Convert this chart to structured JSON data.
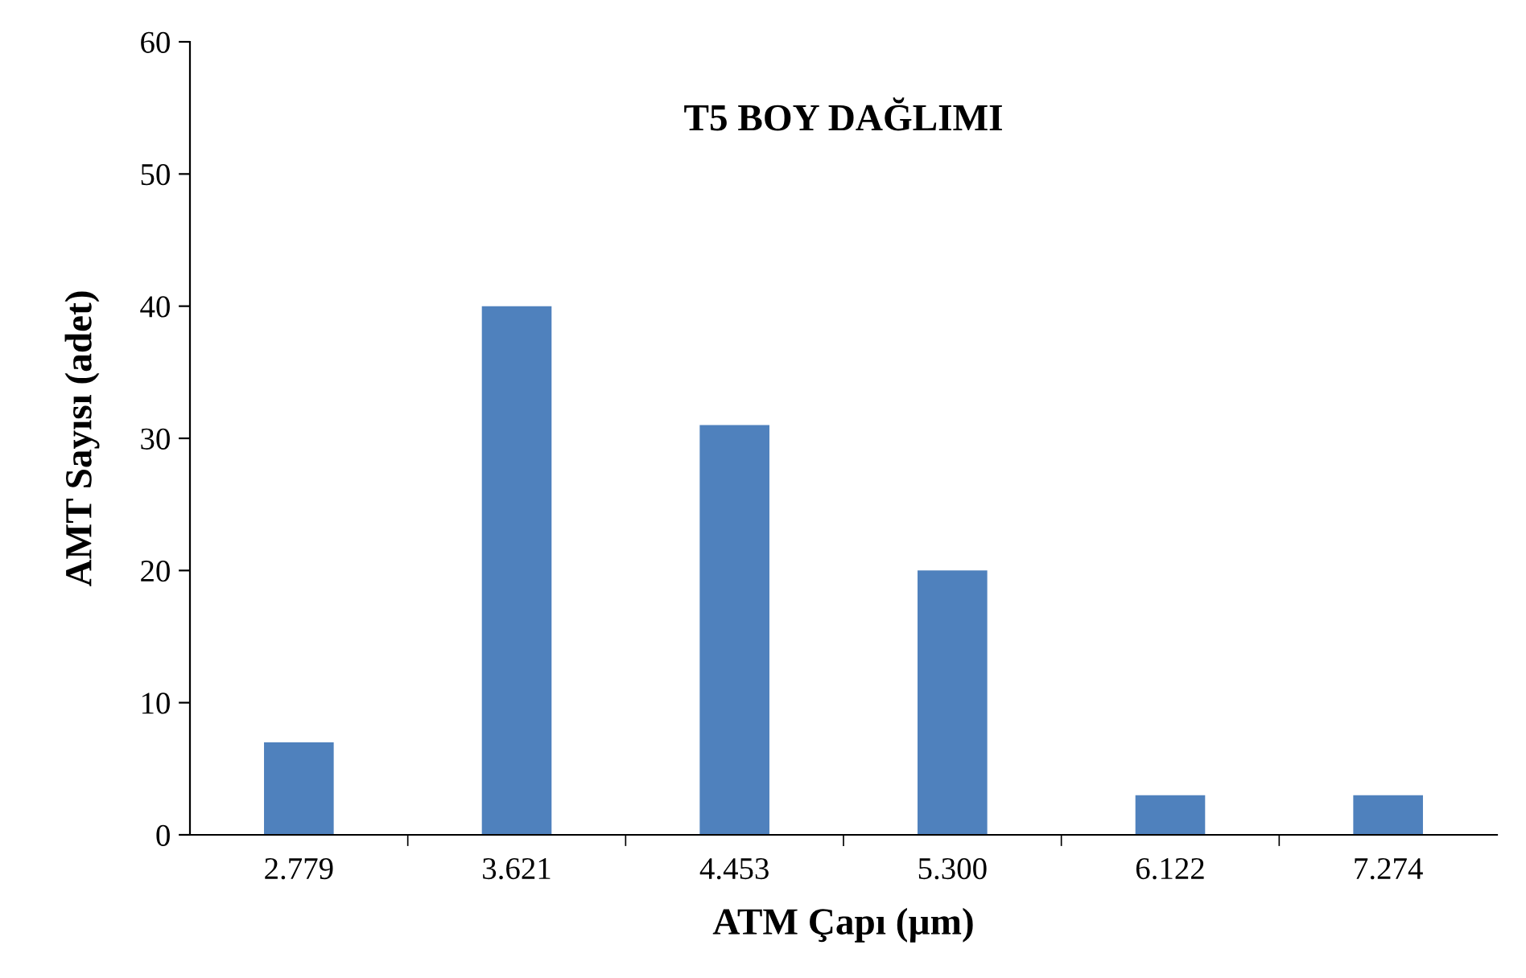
{
  "chart_data": {
    "type": "bar",
    "title": "T5 BOY DAĞLIMI",
    "xlabel": "ATM Çapı (µm)",
    "ylabel": "AMT Sayısı (adet)",
    "categories": [
      "2.779",
      "3.621",
      "4.453",
      "5.300",
      "6.122",
      "7.274"
    ],
    "values": [
      7,
      40,
      31,
      20,
      3,
      3
    ],
    "color": "#4f81bd",
    "ylim": [
      0,
      60
    ],
    "yticks": [
      0,
      10,
      20,
      30,
      40,
      50,
      60
    ],
    "grid": false,
    "legend": false
  }
}
